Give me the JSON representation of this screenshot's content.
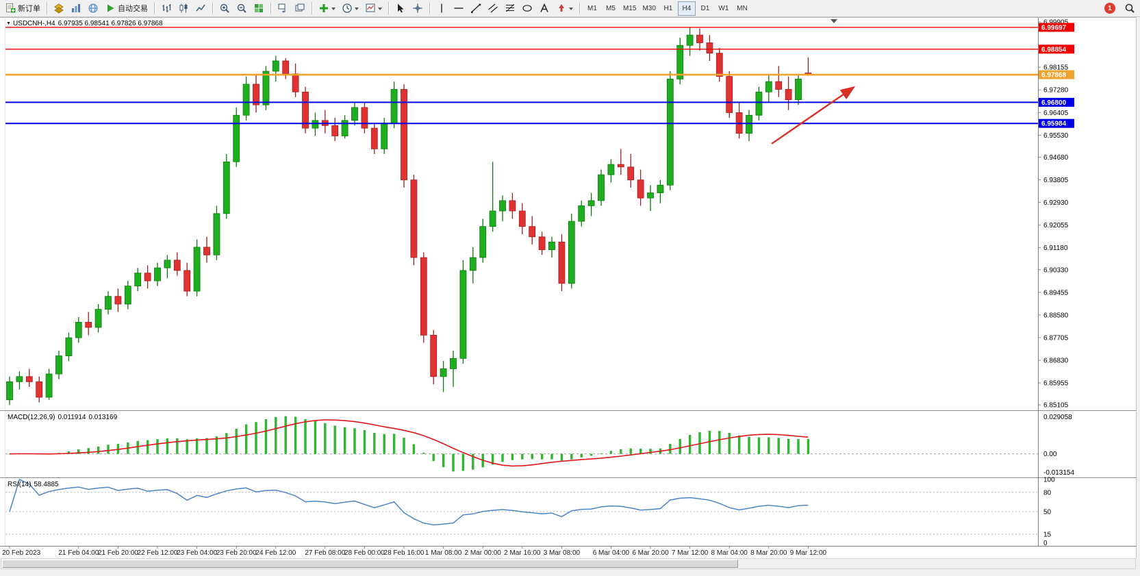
{
  "toolbar": {
    "new_order": "新订单",
    "autotrading": "自动交易",
    "timeframes": [
      "M1",
      "M5",
      "M15",
      "M30",
      "H1",
      "H4",
      "D1",
      "W1",
      "MN"
    ],
    "active_timeframe": "H4",
    "notification_count": "1"
  },
  "chart": {
    "symbol_period": "USDCNH-,H4",
    "ohlc": "6.97935 6.98541 6.97826 6.97868",
    "scale_labels": [
      "6.99905",
      "6.98155",
      "6.97280",
      "6.96405",
      "6.95530",
      "6.94680",
      "6.93805",
      "6.92930",
      "6.92055",
      "6.91180",
      "6.90330",
      "6.89455",
      "6.88580",
      "6.87705",
      "6.86830",
      "6.85955",
      "6.85105"
    ],
    "colors": {
      "bull": "#1fae1f",
      "bull_border": "#0e7a0e",
      "bear": "#e03232",
      "bear_border": "#a51d1d",
      "macd_hist": "#2fb52f",
      "macd_signal": "#e01717",
      "rsi_line": "#4a86c8",
      "arrow": "#d93025",
      "red_level": "#f20000",
      "gold_level": "#efa22d",
      "blue_level": "#0000e8"
    }
  },
  "macd": {
    "name": "MACD(12,26,9)",
    "value_main": "0.011914",
    "value_signal": "0.013169",
    "scale": [
      "0.029058",
      "0.00",
      "-0.013154"
    ]
  },
  "rsi": {
    "name": "RSI(14)",
    "value": "58.4885",
    "scale": [
      "100",
      "80",
      "50",
      "15",
      "0"
    ],
    "levels": [
      80,
      50,
      15
    ]
  },
  "chart_data": {
    "type": "candlestick",
    "symbol": "USDCNH-",
    "period": "H4",
    "price_range": [
      6.8495,
      6.9996
    ],
    "candles": [
      [
        6.853,
        6.862,
        6.851,
        6.86
      ],
      [
        6.86,
        6.864,
        6.857,
        6.862
      ],
      [
        6.862,
        6.865,
        6.858,
        6.86
      ],
      [
        6.86,
        6.862,
        6.852,
        6.854
      ],
      [
        6.854,
        6.865,
        6.853,
        6.863
      ],
      [
        6.863,
        6.872,
        6.861,
        6.87
      ],
      [
        6.87,
        6.879,
        6.868,
        6.877
      ],
      [
        6.877,
        6.885,
        6.875,
        6.883
      ],
      [
        6.883,
        6.887,
        6.878,
        6.881
      ],
      [
        6.881,
        6.89,
        6.879,
        6.888
      ],
      [
        6.888,
        6.895,
        6.886,
        6.893
      ],
      [
        6.893,
        6.896,
        6.887,
        6.89
      ],
      [
        6.89,
        6.899,
        6.888,
        6.897
      ],
      [
        6.897,
        6.904,
        6.895,
        6.902
      ],
      [
        6.902,
        6.905,
        6.896,
        6.899
      ],
      [
        6.899,
        6.906,
        6.897,
        6.904
      ],
      [
        6.904,
        6.909,
        6.9,
        6.907
      ],
      [
        6.907,
        6.91,
        6.901,
        6.903
      ],
      [
        6.903,
        6.906,
        6.893,
        6.895
      ],
      [
        6.895,
        6.915,
        6.893,
        6.912
      ],
      [
        6.912,
        6.916,
        6.906,
        6.909
      ],
      [
        6.909,
        6.928,
        6.907,
        6.925
      ],
      [
        6.925,
        6.948,
        6.923,
        6.945
      ],
      [
        6.945,
        6.966,
        6.943,
        6.963
      ],
      [
        6.963,
        6.978,
        6.961,
        6.975
      ],
      [
        6.975,
        6.979,
        6.964,
        6.967
      ],
      [
        6.967,
        6.982,
        6.965,
        6.98
      ],
      [
        6.98,
        6.986,
        6.976,
        6.984
      ],
      [
        6.984,
        6.985,
        6.977,
        6.979
      ],
      [
        6.979,
        6.983,
        6.97,
        6.972
      ],
      [
        6.972,
        6.974,
        6.956,
        6.958
      ],
      [
        6.958,
        6.964,
        6.955,
        6.961
      ],
      [
        6.961,
        6.965,
        6.956,
        6.959
      ],
      [
        6.959,
        6.962,
        6.953,
        6.955
      ],
      [
        6.955,
        6.963,
        6.954,
        6.961
      ],
      [
        6.961,
        6.968,
        6.959,
        6.966
      ],
      [
        6.966,
        6.968,
        6.956,
        6.958
      ],
      [
        6.958,
        6.96,
        6.948,
        6.95
      ],
      [
        6.95,
        6.962,
        6.948,
        6.96
      ],
      [
        6.96,
        6.976,
        6.958,
        6.973
      ],
      [
        6.973,
        6.975,
        6.935,
        6.938
      ],
      [
        6.938,
        6.94,
        6.905,
        6.908
      ],
      [
        6.908,
        6.91,
        6.875,
        6.878
      ],
      [
        6.878,
        6.88,
        6.859,
        6.862
      ],
      [
        6.862,
        6.868,
        6.856,
        6.865
      ],
      [
        6.865,
        6.872,
        6.858,
        6.869
      ],
      [
        6.869,
        6.907,
        6.867,
        6.903
      ],
      [
        6.903,
        6.912,
        6.898,
        6.908
      ],
      [
        6.908,
        6.923,
        6.906,
        6.92
      ],
      [
        6.92,
        6.945,
        6.918,
        6.926
      ],
      [
        6.926,
        6.932,
        6.922,
        6.93
      ],
      [
        6.93,
        6.933,
        6.923,
        6.926
      ],
      [
        6.926,
        6.929,
        6.917,
        6.92
      ],
      [
        6.92,
        6.924,
        6.913,
        6.916
      ],
      [
        6.916,
        6.918,
        6.909,
        6.911
      ],
      [
        6.911,
        6.916,
        6.908,
        6.914
      ],
      [
        6.914,
        6.917,
        6.895,
        6.898
      ],
      [
        6.898,
        6.925,
        6.896,
        6.922
      ],
      [
        6.922,
        6.93,
        6.92,
        6.928
      ],
      [
        6.928,
        6.933,
        6.924,
        6.93
      ],
      [
        6.93,
        6.942,
        6.928,
        6.94
      ],
      [
        6.94,
        6.946,
        6.937,
        6.944
      ],
      [
        6.944,
        6.95,
        6.94,
        6.943
      ],
      [
        6.943,
        6.948,
        6.935,
        6.938
      ],
      [
        6.938,
        6.942,
        6.928,
        6.931
      ],
      [
        6.931,
        6.936,
        6.926,
        6.933
      ],
      [
        6.933,
        6.938,
        6.929,
        6.936
      ],
      [
        6.936,
        6.98,
        6.934,
        6.977
      ],
      [
        6.977,
        6.993,
        6.975,
        6.99
      ],
      [
        6.99,
        6.997,
        6.986,
        6.994
      ],
      [
        6.994,
        6.9965,
        6.988,
        6.991
      ],
      [
        6.991,
        6.994,
        6.984,
        6.987
      ],
      [
        6.987,
        6.989,
        6.976,
        6.978
      ],
      [
        6.978,
        6.98,
        6.962,
        6.964
      ],
      [
        6.964,
        6.968,
        6.954,
        6.956
      ],
      [
        6.956,
        6.965,
        6.953,
        6.963
      ],
      [
        6.963,
        6.974,
        6.961,
        6.972
      ],
      [
        6.972,
        6.979,
        6.968,
        6.976
      ],
      [
        6.976,
        6.982,
        6.97,
        6.973
      ],
      [
        6.973,
        6.978,
        6.965,
        6.969
      ],
      [
        6.969,
        6.979,
        6.967,
        6.977
      ],
      [
        6.97935,
        6.98541,
        6.97826,
        6.97868
      ]
    ],
    "time_labels": [
      "20 Feb 2023",
      "21 Feb 04:00",
      "21 Feb 20:00",
      "22 Feb 12:00",
      "23 Feb 04:00",
      "23 Feb 20:00",
      "24 Feb 12:00",
      "27 Feb 08:00",
      "28 Feb 00:00",
      "28 Feb 16:00",
      "1 Mar 08:00",
      "2 Mar 00:00",
      "2 Mar 16:00",
      "3 Mar 08:00",
      "6 Mar 04:00",
      "6 Mar 20:00",
      "7 Mar 12:00",
      "8 Mar 04:00",
      "8 Mar 20:00",
      "9 Mar 12:00"
    ],
    "time_label_bars": [
      0,
      7,
      11,
      15,
      19,
      23,
      27,
      32,
      36,
      40,
      44,
      48,
      52,
      56,
      61,
      65,
      69,
      73,
      77,
      81
    ],
    "hlines": [
      {
        "price": 6.99697,
        "label": "6.99697",
        "color": "#f20000",
        "width": 1.4
      },
      {
        "price": 6.98854,
        "label": "6.98854",
        "color": "#f20000",
        "width": 1.4
      },
      {
        "price": 6.97868,
        "label": "6.97868",
        "color": "#efa22d",
        "width": 2.6
      },
      {
        "price": 6.968,
        "label": "6.96800",
        "color": "#0000e8",
        "width": 2
      },
      {
        "price": 6.95984,
        "label": "6.95984",
        "color": "#0000e8",
        "width": 2
      }
    ],
    "arrow": {
      "from": {
        "bar": 77.3,
        "price": 6.952
      },
      "to": {
        "bar": 85.5,
        "price": 6.9735
      }
    },
    "indicators": [
      {
        "name": "MACD(12,26,9)",
        "values": [
          0.011914,
          0.013169
        ],
        "scale": [
          0.029058,
          0.0,
          -0.013154
        ]
      },
      {
        "name": "RSI(14)",
        "value": 58.4885,
        "levels": [
          80,
          50,
          15
        ]
      }
    ]
  }
}
